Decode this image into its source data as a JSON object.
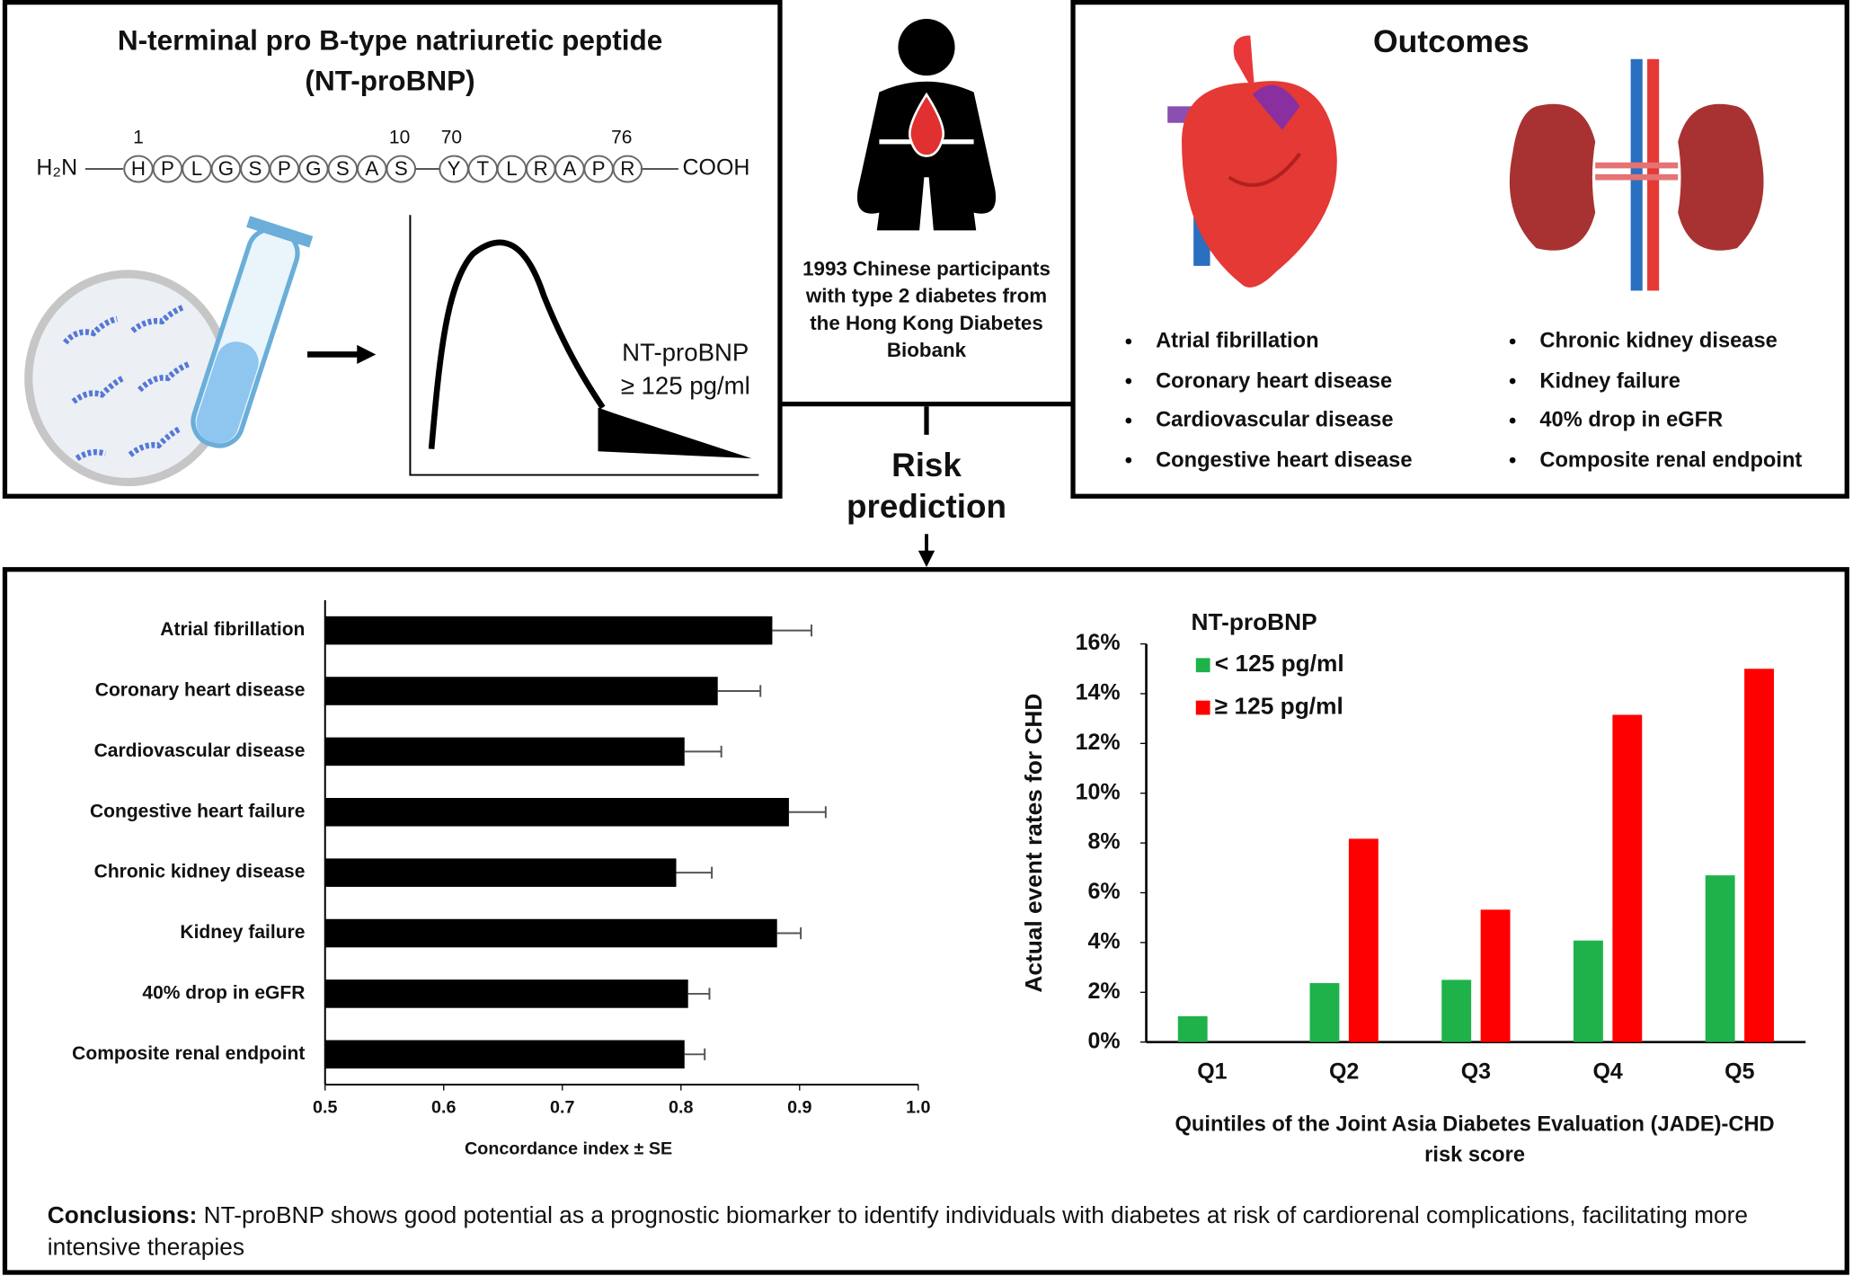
{
  "peptide": {
    "title": "N-terminal pro B-type natriuretic peptide",
    "abbreviation": "(NT-proBNP)",
    "n_terminus": "H₂N",
    "c_terminus": "COOH",
    "residues": [
      "H",
      "P",
      "L",
      "G",
      "S",
      "P",
      "G",
      "S",
      "A",
      "S",
      "Y",
      "T",
      "L",
      "R",
      "A",
      "P",
      "R"
    ],
    "residue_numbers": [
      "1",
      "10",
      "70",
      "76"
    ],
    "threshold_name": "NT-proBNP",
    "threshold": "≥ 125 pg/ml"
  },
  "population": "1993 Chinese participants with type 2 diabetes from the Hong Kong Diabetes Biobank",
  "risk_label": "Risk prediction",
  "outcomes": {
    "title": "Outcomes",
    "cardiac": [
      "Atrial fibrillation",
      "Coronary heart disease",
      "Cardiovascular disease",
      "Congestive heart disease"
    ],
    "renal": [
      "Chronic kidney disease",
      "Kidney failure",
      "40% drop in eGFR",
      "Composite renal endpoint"
    ]
  },
  "chart_data": [
    {
      "type": "hbar",
      "xlabel": "Concordance index ± SE",
      "categories": [
        "Atrial fibrillation",
        "Coronary heart disease",
        "Cardiovascular disease",
        "Congestive heart failure",
        "Chronic kidney disease",
        "Kidney failure",
        "40% drop in eGFR",
        "Composite renal endpoint"
      ],
      "values": [
        0.877,
        0.831,
        0.803,
        0.891,
        0.796,
        0.881,
        0.806,
        0.803
      ],
      "errors": [
        0.033,
        0.036,
        0.031,
        0.031,
        0.03,
        0.02,
        0.018,
        0.017
      ],
      "color": "#000000",
      "xlim": [
        0.5,
        1
      ],
      "xticks": [
        0.5,
        0.6,
        0.7,
        0.8,
        0.9,
        {
          "value": 1,
          "label": "1.0"
        }
      ]
    },
    {
      "type": "grouped_bar",
      "legend_title": "NT-proBNP",
      "ylabel": "Actual event rates for CHD",
      "xlabel": "Quintiles of the Joint Asia Diabetes Evaluation (JADE)-CHD risk score",
      "categories": [
        "Q1",
        "Q2",
        "Q3",
        "Q4",
        "Q5"
      ],
      "series": [
        {
          "name": "< 125 pg/ml",
          "color": "#1fb24a",
          "values": [
            1.04,
            2.37,
            2.5,
            4.08,
            6.7
          ]
        },
        {
          "name": "≥ 125 pg/ml",
          "color": "#ff0000",
          "values": [
            null,
            8.17,
            5.32,
            13.15,
            15.0
          ]
        }
      ],
      "ylim": [
        0,
        16
      ],
      "yticks": [
        {
          "value": 0,
          "label": "0%"
        },
        {
          "value": 2,
          "label": "2%"
        },
        {
          "value": 4,
          "label": "4%"
        },
        {
          "value": 6,
          "label": "6%"
        },
        {
          "value": 8,
          "label": "8%"
        },
        {
          "value": 10,
          "label": "10%"
        },
        {
          "value": 12,
          "label": "12%"
        },
        {
          "value": 14,
          "label": "14%"
        },
        {
          "value": 16,
          "label": "16%"
        }
      ],
      "legend_position": "upper left"
    }
  ],
  "conclusions": {
    "label": "Conclusions:",
    "text": "NT-proBNP shows good potential as a prognostic biomarker to identify individuals with diabetes at risk of cardiorenal complications, facilitating more intensive therapies"
  }
}
